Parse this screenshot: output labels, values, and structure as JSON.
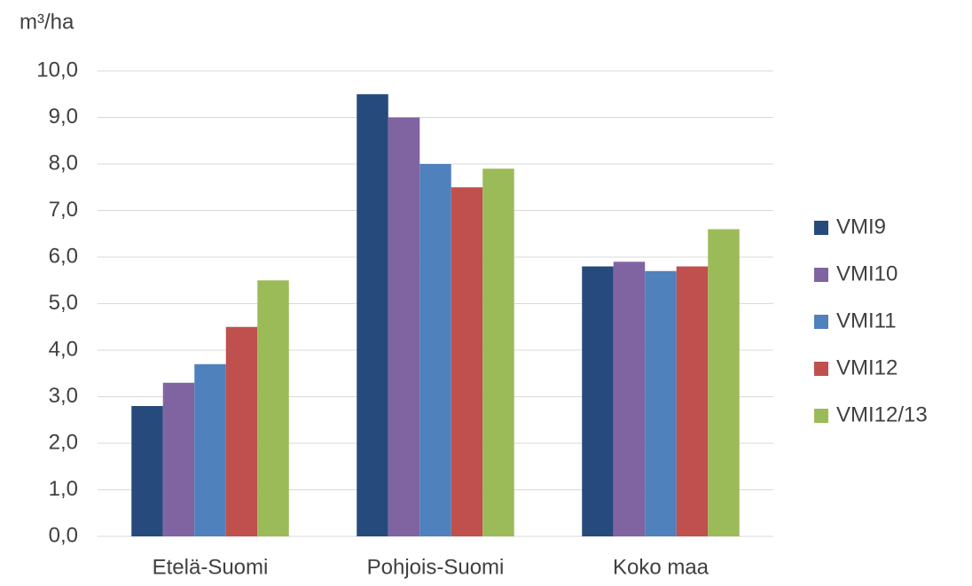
{
  "chart_data": {
    "type": "bar",
    "y_label": "m³/ha",
    "categories": [
      "Etelä-Suomi",
      "Pohjois-Suomi",
      "Koko maa"
    ],
    "series": [
      {
        "name": "VMI9",
        "color": "#264a7b",
        "values": [
          2.8,
          9.5,
          5.8
        ]
      },
      {
        "name": "VMI10",
        "color": "#8064a2",
        "values": [
          3.3,
          9.0,
          5.9
        ]
      },
      {
        "name": "VMI11",
        "color": "#4f81bd",
        "values": [
          3.7,
          8.0,
          5.7
        ]
      },
      {
        "name": "VMI12",
        "color": "#c0504d",
        "values": [
          4.5,
          7.5,
          5.8
        ]
      },
      {
        "name": "VMI12/13",
        "color": "#9bbb59",
        "values": [
          5.5,
          7.9,
          6.6
        ]
      }
    ],
    "ylim": [
      0,
      10
    ],
    "yticks": [
      {
        "value": 0,
        "label": "0,0"
      },
      {
        "value": 1,
        "label": "1,0"
      },
      {
        "value": 2,
        "label": "2,0"
      },
      {
        "value": 3,
        "label": "3,0"
      },
      {
        "value": 4,
        "label": "4,0"
      },
      {
        "value": 5,
        "label": "5,0"
      },
      {
        "value": 6,
        "label": "6,0"
      },
      {
        "value": 7,
        "label": "7,0"
      },
      {
        "value": 8,
        "label": "8,0"
      },
      {
        "value": 9,
        "label": "9,0"
      },
      {
        "value": 10,
        "label": "10,0"
      }
    ],
    "grid": true,
    "legend": "right"
  }
}
